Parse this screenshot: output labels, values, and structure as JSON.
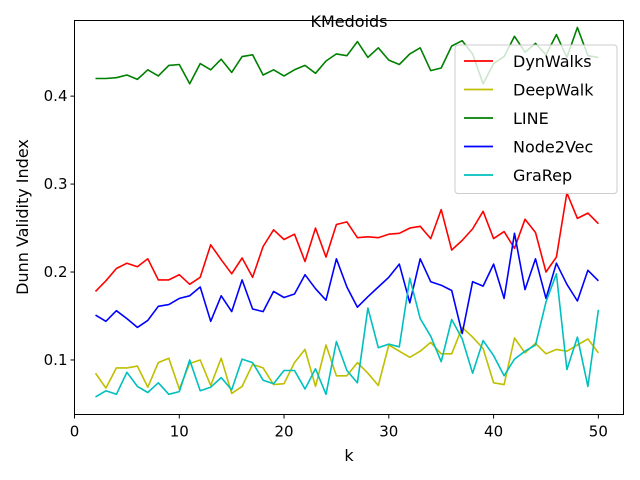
{
  "chart_data": {
    "type": "line",
    "title": "KMedoids",
    "xlabel": "k",
    "ylabel": "Dunn Validity Index",
    "xlim": [
      0,
      52.4
    ],
    "ylim": [
      0.038,
      0.486
    ],
    "xticks": [
      0,
      10,
      20,
      30,
      40,
      50
    ],
    "yticks": [
      0.1,
      0.2,
      0.3,
      0.4
    ],
    "grid": false,
    "legend_position": "top-right",
    "x": [
      2,
      3,
      4,
      5,
      6,
      7,
      8,
      9,
      10,
      11,
      12,
      13,
      14,
      15,
      16,
      17,
      18,
      19,
      20,
      21,
      22,
      23,
      24,
      25,
      26,
      27,
      28,
      29,
      30,
      31,
      32,
      33,
      34,
      35,
      36,
      37,
      38,
      39,
      40,
      41,
      42,
      43,
      44,
      45,
      46,
      47,
      48,
      49,
      50
    ],
    "series": [
      {
        "name": "DynWalks",
        "color": "#ff0000",
        "values": [
          0.178,
          0.19,
          0.204,
          0.21,
          0.206,
          0.215,
          0.191,
          0.191,
          0.197,
          0.186,
          0.194,
          0.231,
          0.214,
          0.198,
          0.216,
          0.194,
          0.229,
          0.248,
          0.237,
          0.243,
          0.212,
          0.25,
          0.217,
          0.254,
          0.257,
          0.239,
          0.24,
          0.239,
          0.243,
          0.244,
          0.25,
          0.252,
          0.238,
          0.271,
          0.225,
          0.236,
          0.249,
          0.269,
          0.238,
          0.246,
          0.227,
          0.26,
          0.245,
          0.2,
          0.217,
          0.29,
          0.261,
          0.267,
          0.255
        ]
      },
      {
        "name": "DeepWalk",
        "color": "#bfbf00",
        "values": [
          0.085,
          0.068,
          0.091,
          0.091,
          0.093,
          0.069,
          0.097,
          0.102,
          0.067,
          0.096,
          0.1,
          0.071,
          0.102,
          0.062,
          0.07,
          0.095,
          0.091,
          0.072,
          0.073,
          0.097,
          0.112,
          0.07,
          0.117,
          0.082,
          0.082,
          0.097,
          0.085,
          0.071,
          0.117,
          0.11,
          0.103,
          0.11,
          0.12,
          0.107,
          0.107,
          0.137,
          0.126,
          0.113,
          0.074,
          0.072,
          0.125,
          0.108,
          0.119,
          0.107,
          0.112,
          0.11,
          0.117,
          0.124,
          0.108
        ]
      },
      {
        "name": "LINE",
        "color": "#008000",
        "values": [
          0.42,
          0.42,
          0.421,
          0.424,
          0.419,
          0.43,
          0.423,
          0.435,
          0.436,
          0.414,
          0.437,
          0.43,
          0.442,
          0.427,
          0.445,
          0.447,
          0.424,
          0.43,
          0.423,
          0.43,
          0.435,
          0.426,
          0.44,
          0.448,
          0.446,
          0.462,
          0.444,
          0.455,
          0.441,
          0.436,
          0.448,
          0.455,
          0.429,
          0.432,
          0.457,
          0.463,
          0.448,
          0.414,
          0.437,
          0.445,
          0.468,
          0.45,
          0.46,
          0.447,
          0.47,
          0.444,
          0.478,
          0.446,
          0.444
        ]
      },
      {
        "name": "Node2Vec",
        "color": "#0000ff",
        "values": [
          0.151,
          0.144,
          0.156,
          0.147,
          0.137,
          0.145,
          0.161,
          0.163,
          0.17,
          0.173,
          0.183,
          0.144,
          0.173,
          0.155,
          0.191,
          0.158,
          0.155,
          0.178,
          0.171,
          0.175,
          0.197,
          0.181,
          0.168,
          0.215,
          0.183,
          0.16,
          0.172,
          0.183,
          0.194,
          0.209,
          0.165,
          0.215,
          0.189,
          0.185,
          0.179,
          0.13,
          0.189,
          0.184,
          0.209,
          0.17,
          0.244,
          0.18,
          0.215,
          0.17,
          0.21,
          0.186,
          0.167,
          0.202,
          0.19
        ]
      },
      {
        "name": "GraRep",
        "color": "#00bfbf",
        "values": [
          0.058,
          0.065,
          0.061,
          0.086,
          0.07,
          0.063,
          0.074,
          0.061,
          0.064,
          0.1,
          0.065,
          0.069,
          0.08,
          0.066,
          0.101,
          0.097,
          0.077,
          0.073,
          0.088,
          0.088,
          0.067,
          0.09,
          0.061,
          0.121,
          0.088,
          0.074,
          0.159,
          0.114,
          0.118,
          0.115,
          0.193,
          0.147,
          0.127,
          0.098,
          0.146,
          0.124,
          0.085,
          0.122,
          0.105,
          0.082,
          0.101,
          0.11,
          0.117,
          0.166,
          0.198,
          0.089,
          0.126,
          0.07,
          0.157
        ]
      }
    ]
  }
}
